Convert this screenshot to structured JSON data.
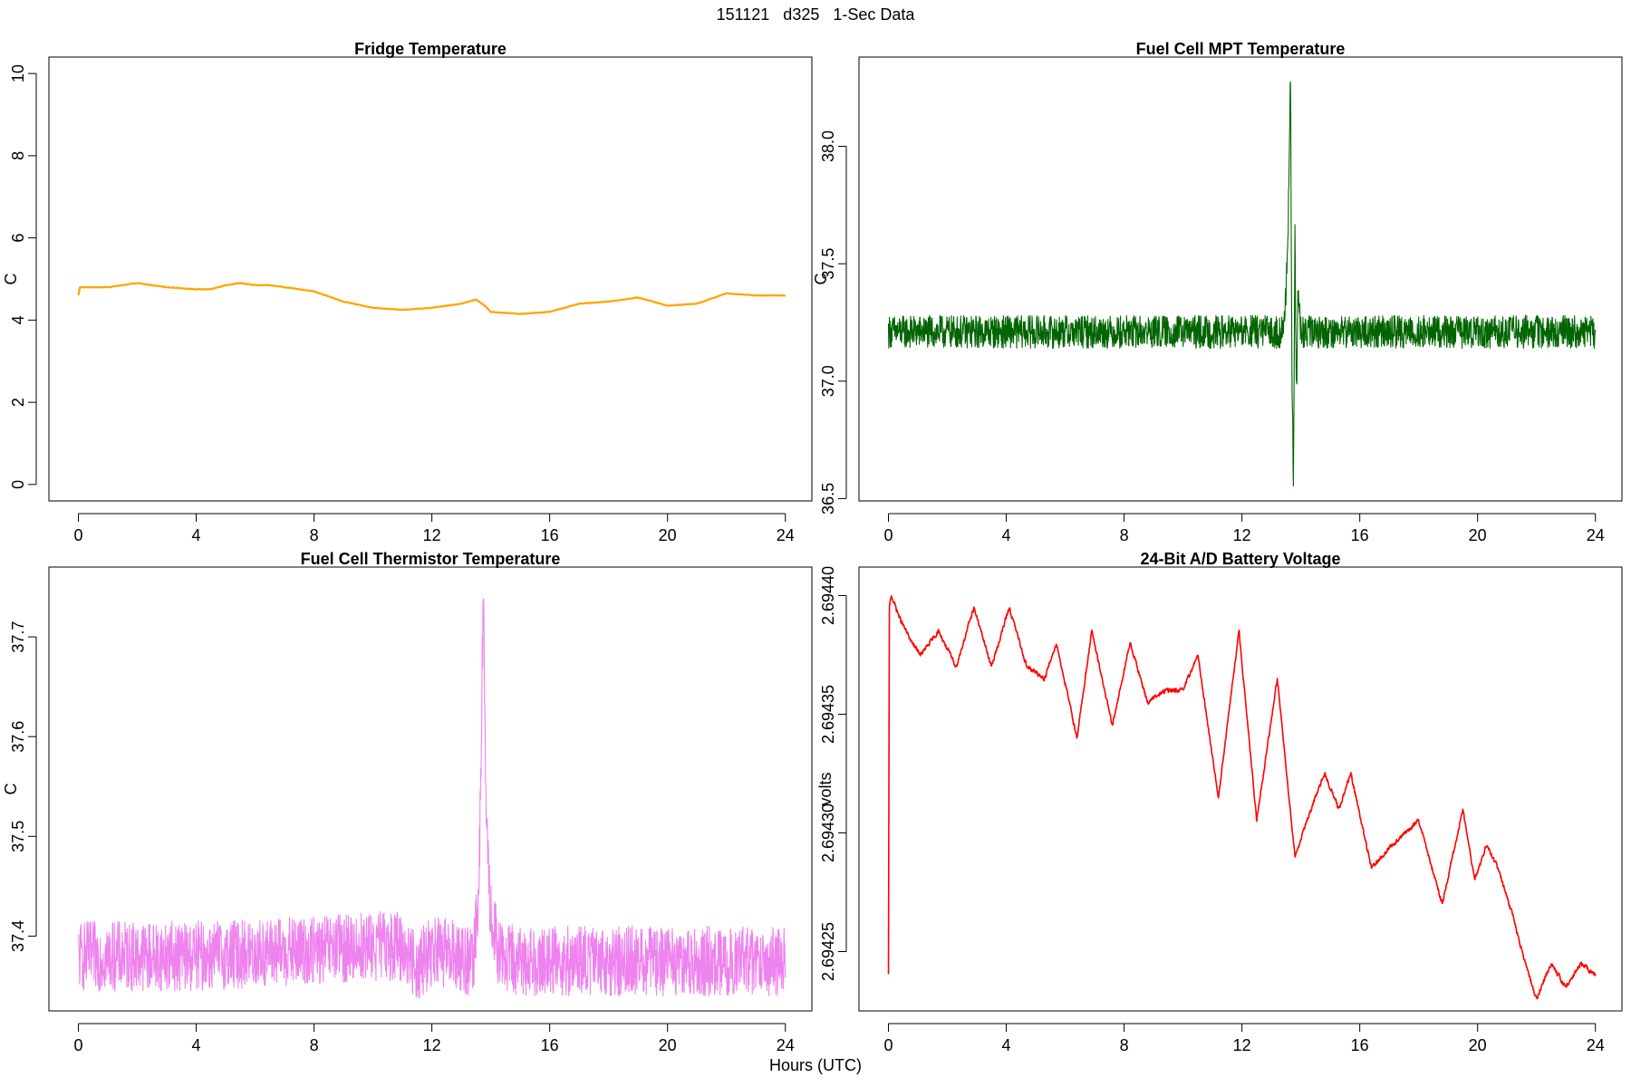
{
  "figure": {
    "title": "151121   d325   1-Sec Data",
    "xlabel": "Hours (UTC)"
  },
  "chart_data": [
    {
      "type": "line",
      "title": "Fridge Temperature",
      "xlabel": "",
      "ylabel": "C",
      "color": "#FFA500",
      "xlim": [
        -1,
        24.9
      ],
      "ylim": [
        -0.4,
        10.4
      ],
      "xticks": [
        0,
        4,
        8,
        12,
        16,
        20,
        24
      ],
      "yticks": [
        0,
        2,
        4,
        6,
        8,
        10
      ],
      "ytick_labels": [
        "0",
        "2",
        "4",
        "6",
        "8",
        "10"
      ],
      "noise": 0.01,
      "x": [
        0,
        0.05,
        0.3,
        1,
        2,
        3,
        4,
        4.5,
        5,
        5.5,
        6,
        6.5,
        7,
        8,
        9,
        10,
        11,
        12,
        13,
        13.5,
        13.8,
        14,
        15,
        16,
        17,
        18,
        19,
        20,
        21,
        22,
        23,
        24
      ],
      "values": [
        4.6,
        4.8,
        4.8,
        4.8,
        4.9,
        4.8,
        4.75,
        4.75,
        4.85,
        4.9,
        4.85,
        4.85,
        4.8,
        4.7,
        4.45,
        4.3,
        4.25,
        4.3,
        4.4,
        4.5,
        4.35,
        4.2,
        4.15,
        4.2,
        4.4,
        4.45,
        4.55,
        4.35,
        4.4,
        4.65,
        4.6,
        4.6
      ]
    },
    {
      "type": "line",
      "title": "Fuel Cell MPT Temperature",
      "xlabel": "",
      "ylabel": "C",
      "color": "#006400",
      "xlim": [
        -1,
        24.9
      ],
      "ylim": [
        36.49,
        38.38
      ],
      "xticks": [
        0,
        4,
        8,
        12,
        16,
        20,
        24
      ],
      "yticks": [
        36.5,
        37.0,
        37.5,
        38.0
      ],
      "ytick_labels": [
        "36.5",
        "37.0",
        "37.5",
        "38.0"
      ],
      "noise": 0.07,
      "x": [
        0,
        13.4,
        13.55,
        13.65,
        13.7,
        13.75,
        13.8,
        13.85,
        13.9,
        14.0,
        14.3,
        24
      ],
      "values": [
        37.21,
        37.21,
        37.5,
        38.3,
        37.0,
        36.56,
        37.6,
        36.9,
        37.4,
        37.2,
        37.21,
        37.21
      ]
    },
    {
      "type": "line",
      "title": "Fuel Cell Thermistor Temperature",
      "xlabel": "",
      "ylabel": "C",
      "color": "#EE82EE",
      "xlim": [
        -1,
        24.9
      ],
      "ylim": [
        37.325,
        37.77
      ],
      "xticks": [
        0,
        4,
        8,
        12,
        16,
        20,
        24
      ],
      "yticks": [
        37.4,
        37.5,
        37.6,
        37.7
      ],
      "ytick_labels": [
        "37.4",
        "37.5",
        "37.6",
        "37.7"
      ],
      "noise": 0.035,
      "x": [
        0,
        4,
        8,
        10,
        11,
        11.5,
        12,
        13,
        13.4,
        13.6,
        13.75,
        13.85,
        14,
        14.3,
        15,
        16,
        20,
        24
      ],
      "values": [
        37.38,
        37.38,
        37.385,
        37.39,
        37.39,
        37.37,
        37.385,
        37.38,
        37.37,
        37.45,
        37.74,
        37.5,
        37.42,
        37.38,
        37.375,
        37.375,
        37.375,
        37.375
      ]
    },
    {
      "type": "line",
      "title": "24-Bit A/D Battery Voltage",
      "xlabel": "",
      "ylabel": "volts",
      "color": "#FF0000",
      "xlim": [
        -1,
        24.9
      ],
      "ylim": [
        2.694225,
        2.694412
      ],
      "xticks": [
        0,
        4,
        8,
        12,
        16,
        20,
        24
      ],
      "yticks": [
        2.69425,
        2.6943,
        2.69435,
        2.6944
      ],
      "ytick_labels": [
        "2.69425",
        "2.69430",
        "2.69435",
        "2.69440"
      ],
      "noise": 1.5e-06,
      "x": [
        0,
        0.03,
        0.1,
        0.4,
        0.8,
        1.1,
        1.7,
        2.3,
        2.9,
        3.5,
        4.1,
        4.7,
        5.3,
        5.7,
        6.4,
        6.9,
        7.6,
        8.2,
        8.8,
        9.4,
        10,
        10.5,
        11.2,
        11.9,
        12.5,
        13.2,
        13.8,
        14.2,
        14.8,
        15.3,
        15.7,
        16.4,
        17.1,
        18,
        18.8,
        19.5,
        19.9,
        20.3,
        20.7,
        21.2,
        21.5,
        22,
        22.5,
        23,
        23.5,
        24
      ],
      "values": [
        2.69424,
        2.694395,
        2.6944,
        2.69439,
        2.69438,
        2.694375,
        2.694385,
        2.69437,
        2.694395,
        2.69437,
        2.694395,
        2.69437,
        2.694365,
        2.69438,
        2.69434,
        2.694385,
        2.694345,
        2.69438,
        2.694355,
        2.69436,
        2.69436,
        2.694375,
        2.694315,
        2.694385,
        2.694305,
        2.694365,
        2.69429,
        2.694305,
        2.694325,
        2.69431,
        2.694325,
        2.694285,
        2.694295,
        2.694305,
        2.69427,
        2.69431,
        2.69428,
        2.694295,
        2.694285,
        2.694265,
        2.69425,
        2.69423,
        2.694245,
        2.694235,
        2.694245,
        2.69424
      ]
    }
  ]
}
